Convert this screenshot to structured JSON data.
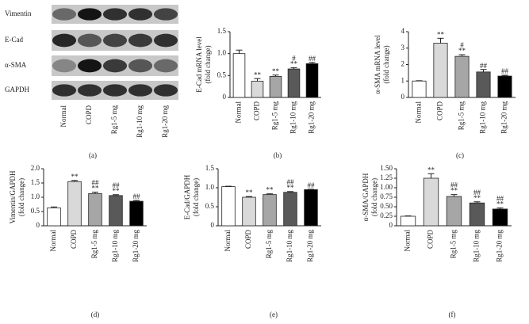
{
  "blot": {
    "label": "(a)",
    "proteins": [
      "Vimentin",
      "E-Cad",
      "α-SMA",
      "GAPDH"
    ],
    "lanes": [
      "Normal",
      "COPD",
      "Rg1-5 mg",
      "Rg1-10 mg",
      "Rg1-20 mg"
    ]
  },
  "chart_data": [
    {
      "type": "bar",
      "label": "(b)",
      "ylabel": [
        "E-Cad mRNA level",
        "(fold change)"
      ],
      "categories": [
        "Normal",
        "COPD",
        "Rg1-5 mg",
        "Rg1-10 mg",
        "Rg1-20 mg"
      ],
      "values": [
        1.0,
        0.37,
        0.48,
        0.65,
        0.77
      ],
      "errors": [
        0.08,
        0.06,
        0.03,
        0.03,
        0.03
      ],
      "annotations": [
        null,
        [
          "**"
        ],
        [
          "**"
        ],
        [
          "#",
          "**"
        ],
        [
          "##"
        ]
      ],
      "colors": [
        "#ffffff",
        "#d9d9d9",
        "#a6a6a6",
        "#595959",
        "#000000"
      ],
      "ylim": [
        0,
        1.5
      ],
      "yticks": [
        0,
        0.5,
        {
          "value": 1,
          "label": "1.0"
        },
        1.5
      ]
    },
    {
      "type": "bar",
      "label": "(c)",
      "ylabel": [
        "α-SMA mRNA level",
        "(fold change)"
      ],
      "categories": [
        "Normal",
        "COPD",
        "Rg1-5 mg",
        "Rg1-10 mg",
        "Rg1-20 mg"
      ],
      "values": [
        1.0,
        3.3,
        2.5,
        1.55,
        1.3
      ],
      "errors": [
        0.02,
        0.3,
        0.1,
        0.15,
        0.05
      ],
      "annotations": [
        null,
        [
          "**"
        ],
        [
          "#",
          "**"
        ],
        [
          "##"
        ],
        [
          "##"
        ]
      ],
      "colors": [
        "#ffffff",
        "#d9d9d9",
        "#a6a6a6",
        "#595959",
        "#000000"
      ],
      "ylim": [
        0,
        4
      ],
      "yticks": [
        0,
        1,
        2,
        3,
        4
      ]
    },
    {
      "type": "bar",
      "label": "(d)",
      "ylabel": [
        "Vimentin/GAPDH",
        "(fold change)"
      ],
      "categories": [
        "Normal",
        "COPD",
        "Rg1-5 mg",
        "Rg1-10 mg",
        "Rg1-20 mg"
      ],
      "values": [
        0.63,
        1.55,
        1.13,
        1.06,
        0.86
      ],
      "errors": [
        0.03,
        0.04,
        0.05,
        0.03,
        0.03
      ],
      "annotations": [
        null,
        [
          "**"
        ],
        [
          "##",
          "**"
        ],
        [
          "##",
          "**"
        ],
        [
          "##"
        ]
      ],
      "colors": [
        "#ffffff",
        "#d9d9d9",
        "#a6a6a6",
        "#595959",
        "#000000"
      ],
      "ylim": [
        0,
        2
      ],
      "yticks": [
        0,
        0.5,
        {
          "value": 1,
          "label": "1.0"
        },
        1.5,
        {
          "value": 2,
          "label": "2.0"
        }
      ]
    },
    {
      "type": "bar",
      "label": "(e)",
      "ylabel": [
        "E-Cad/GAPDH",
        "(fold change)"
      ],
      "categories": [
        "Normal",
        "COPD",
        "Rg1-5 mg",
        "Rg1-10 mg",
        "Rg1-20 mg"
      ],
      "values": [
        1.03,
        0.75,
        0.82,
        0.88,
        0.95
      ],
      "errors": [
        0.01,
        0.02,
        0.02,
        0.02,
        0.01
      ],
      "annotations": [
        null,
        [
          "**"
        ],
        [
          "**"
        ],
        [
          "##",
          "**"
        ],
        [
          "##"
        ]
      ],
      "colors": [
        "#ffffff",
        "#d9d9d9",
        "#a6a6a6",
        "#595959",
        "#000000"
      ],
      "ylim": [
        0,
        1.5
      ],
      "yticks": [
        0,
        0.5,
        {
          "value": 1,
          "label": "1.0"
        },
        1.5
      ]
    },
    {
      "type": "bar",
      "label": "(f)",
      "ylabel": [
        "α-SMA/GAPDH",
        "(fold change)"
      ],
      "categories": [
        "Normal",
        "COPD",
        "Rg1-5 mg",
        "Rg1-10 mg",
        "Rg1-20 mg"
      ],
      "values": [
        0.25,
        1.25,
        0.77,
        0.6,
        0.44
      ],
      "errors": [
        0.01,
        0.12,
        0.05,
        0.03,
        0.03
      ],
      "annotations": [
        null,
        [
          "**"
        ],
        [
          "##",
          "**"
        ],
        [
          "##",
          "**"
        ],
        [
          "##",
          "**"
        ]
      ],
      "colors": [
        "#ffffff",
        "#d9d9d9",
        "#a6a6a6",
        "#595959",
        "#000000"
      ],
      "ylim": [
        0,
        1.5
      ],
      "yticks": [
        0,
        0.25,
        {
          "value": 0.5,
          "label": "0.50"
        },
        0.75,
        {
          "value": 1,
          "label": "1.00"
        },
        1.25,
        {
          "value": 1.5,
          "label": "1.50"
        }
      ]
    }
  ]
}
